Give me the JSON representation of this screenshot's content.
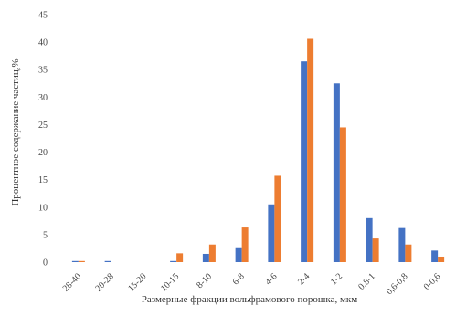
{
  "chart_data": {
    "type": "bar",
    "title": "",
    "xlabel": "Размерные фракции вольфрамового порошка, мкм",
    "ylabel": "Процентное содержание частиц,%",
    "ylim": [
      0,
      45
    ],
    "yticks": [
      0,
      5,
      10,
      15,
      20,
      25,
      30,
      35,
      40,
      45
    ],
    "grid": false,
    "legend": "none",
    "categories": [
      "28-40",
      "20-28",
      "15-20",
      "10-15",
      "8-10",
      "6-8",
      "4-6",
      "2-4",
      "1-2",
      "0,8-1",
      "0,6-0,8",
      "0-0,6"
    ],
    "series": [
      {
        "color": "#4472c4",
        "values": [
          0.2,
          0.2,
          0,
          0.2,
          1.5,
          2.7,
          10.5,
          36.5,
          32.5,
          8,
          6.2,
          2.1
        ]
      },
      {
        "color": "#ed7d31",
        "values": [
          0.2,
          0,
          0,
          1.6,
          3.2,
          6.3,
          15.7,
          40.6,
          24.5,
          4.3,
          3.2,
          1
        ]
      }
    ]
  }
}
